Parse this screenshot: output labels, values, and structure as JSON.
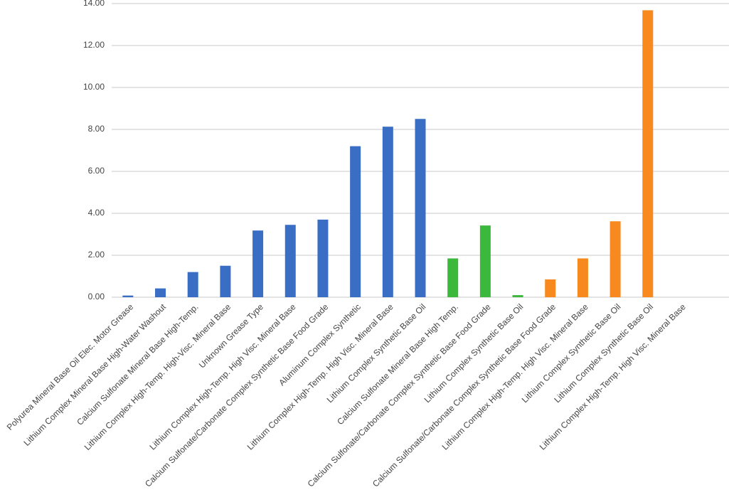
{
  "chart_data": {
    "type": "bar",
    "categories": [
      "Polyurea Mineral Base Oil Elec. Motor Grease",
      "Lithium Complex Mineral Base High-Water Washout",
      "Calcium Sulfonate Mineral Base High-Temp.",
      "Lithium Complex High-Temp. High-Visc. Mineral Base",
      "Unknown Grease Type",
      "Lithium Complex High-Temp. High Visc. Mineral Base",
      "Calcium Sulfonate/Carbonate Complex Synthetic Base Food Grade",
      "Aluminum Complex Synthetic",
      "Lithium Complex High-Temp. High Visc. Mineral Base",
      "Lithium Complex Synthetic Base Oil",
      "Calcium Sulfonate Mineral Base High Temp.",
      "Calcium Sulfonate/Carbonate Complex Synthetic Base Food Grade",
      "Lithium Complex Synthetic Base Oil",
      "Calcium Sulfonate/Carbonate Complex Synthetic Base Food Grade",
      "Lithium Complex High-Temp. High Visc. Mineral Base",
      "Lithium Complex Synthetic Base Oil",
      "Lithium Complex Synthetic Base Oil",
      "Lithium Complex High-Temp. High Visc. Mineral Base",
      null
    ],
    "values": [
      0.08,
      0.42,
      1.2,
      1.5,
      3.18,
      3.45,
      3.7,
      7.2,
      8.13,
      8.5,
      1.85,
      3.42,
      0.1,
      0.85,
      1.85,
      3.62,
      13.68,
      0,
      null
    ],
    "colors": [
      "#3a6ec4",
      "#3a6ec4",
      "#3a6ec4",
      "#3a6ec4",
      "#3a6ec4",
      "#3a6ec4",
      "#3a6ec4",
      "#3a6ec4",
      "#3a6ec4",
      "#3a6ec4",
      "#3cb83c",
      "#3cb83c",
      "#3cb83c",
      "#f7891e",
      "#f7891e",
      "#f7891e",
      "#f7891e",
      "#f7891e",
      "#f7891e"
    ],
    "ylim": [
      0,
      14
    ],
    "yticks": [
      {
        "value": 0,
        "label": "0.00"
      },
      {
        "value": 2,
        "label": "2.00"
      },
      {
        "value": 4,
        "label": "4.00"
      },
      {
        "value": 6,
        "label": "6.00"
      },
      {
        "value": 8,
        "label": "8.00"
      },
      {
        "value": 10,
        "label": "10.00"
      },
      {
        "value": 12,
        "label": "12.00"
      },
      {
        "value": 14,
        "label": "14.00"
      }
    ],
    "grid": true
  }
}
